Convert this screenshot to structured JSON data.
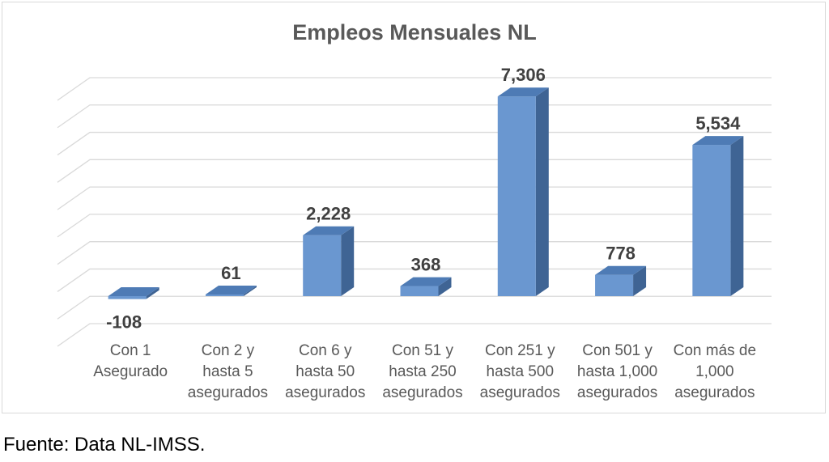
{
  "chart_data": {
    "type": "bar",
    "title": "Empleos Mensuales NL",
    "categories": [
      [
        "Con 1",
        "Asegurado"
      ],
      [
        "Con 2 y",
        "hasta 5",
        "asegurados"
      ],
      [
        "Con 6 y",
        "hasta 50",
        "asegurados"
      ],
      [
        "Con 51 y",
        "hasta 250",
        "asegurados"
      ],
      [
        "Con 251 y",
        "hasta 500",
        "asegurados"
      ],
      [
        "Con 501 y",
        "hasta 1,000",
        "asegurados"
      ],
      [
        "Con más de",
        "1,000",
        "asegurados"
      ]
    ],
    "values": [
      -108,
      61,
      2228,
      368,
      7306,
      778,
      5534
    ],
    "value_labels": [
      "-108",
      "61",
      "2,228",
      "368",
      "7,306",
      "778",
      "5,534"
    ],
    "ylim": [
      -1000,
      8000
    ],
    "grid": true,
    "style": "3d-column",
    "colors": {
      "front": "#6a97d0",
      "side": "#3f6494",
      "top": "#4e7bb5",
      "grid": "#d9d9d9",
      "label": "#404040",
      "category": "#595959"
    }
  },
  "source": "Fuente: Data NL-IMSS."
}
